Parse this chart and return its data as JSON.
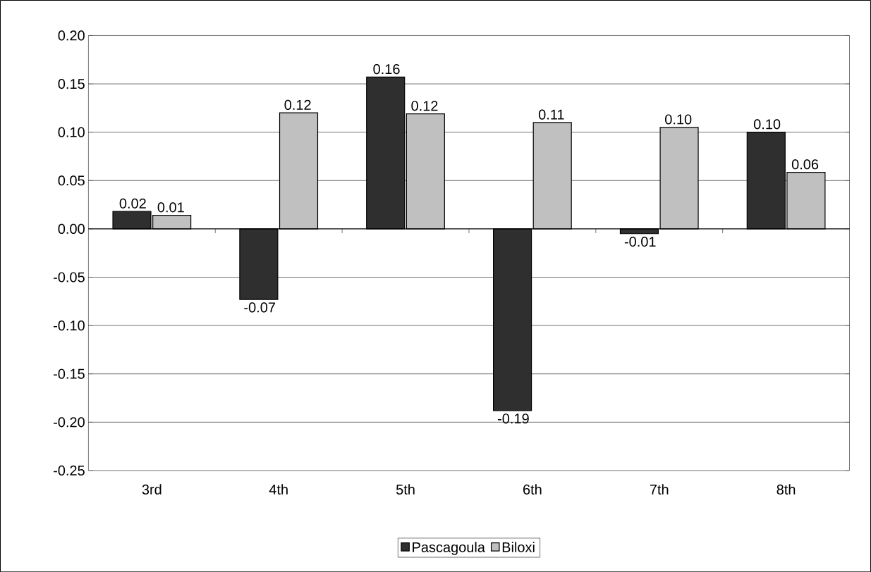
{
  "chart_data": {
    "type": "bar",
    "categories": [
      "3rd",
      "4th",
      "5th",
      "6th",
      "7th",
      "8th"
    ],
    "series": [
      {
        "name": "Pascagoula",
        "color": "#2f2f2f",
        "values": [
          0.018,
          -0.073,
          0.157,
          -0.188,
          -0.005,
          0.1
        ],
        "value_labels": [
          "0.02",
          "-0.07",
          "0.16",
          "-0.19",
          "-0.01",
          "0.10"
        ]
      },
      {
        "name": "Biloxi",
        "color": "#c0c0c0",
        "values": [
          0.014,
          0.12,
          0.119,
          0.11,
          0.105,
          0.0585
        ],
        "value_labels": [
          "0.01",
          "0.12",
          "0.12",
          "0.11",
          "0.10",
          "0.06"
        ]
      }
    ],
    "ylim": [
      -0.25,
      0.2
    ],
    "yticks": [
      {
        "value": -0.25,
        "label": "-0.25"
      },
      {
        "value": -0.2,
        "label": "-0.20"
      },
      {
        "value": -0.15,
        "label": "-0.15"
      },
      {
        "value": -0.1,
        "label": "-0.10"
      },
      {
        "value": -0.05,
        "label": "-0.05"
      },
      {
        "value": 0,
        "label": "0.00"
      },
      {
        "value": 0.05,
        "label": "0.05"
      },
      {
        "value": 0.1,
        "label": "0.10"
      },
      {
        "value": 0.15,
        "label": "0.15"
      },
      {
        "value": 0.2,
        "label": "0.20"
      }
    ],
    "grid": "y",
    "legend": "bottom"
  }
}
